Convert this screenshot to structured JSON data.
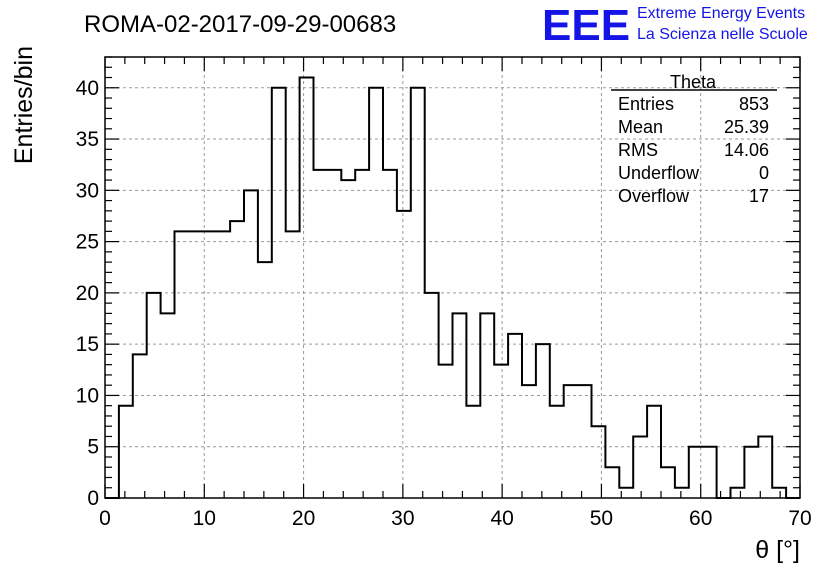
{
  "chart_data": {
    "type": "bar",
    "title": "ROMA-02-2017-09-29-00683",
    "xlabel": "θ [°]",
    "ylabel": "Entries/bin",
    "xlim": [
      0,
      70
    ],
    "ylim": [
      0,
      43
    ],
    "grid": true,
    "x_ticks": [
      0,
      10,
      20,
      30,
      40,
      50,
      60,
      70
    ],
    "y_ticks": [
      0,
      5,
      10,
      15,
      20,
      25,
      30,
      35,
      40
    ],
    "bin_edges": [
      0,
      1.4,
      2.8,
      4.2,
      5.6,
      7,
      8.4,
      9.8,
      11.2,
      12.6,
      14,
      15.4,
      16.8,
      18.2,
      19.6,
      21,
      22.4,
      23.8,
      25.2,
      26.6,
      28,
      29.4,
      30.8,
      32.2,
      33.6,
      35,
      36.4,
      37.8,
      39.2,
      40.6,
      42,
      43.4,
      44.8,
      46.2,
      47.6,
      49,
      50.4,
      51.8,
      53.2,
      54.6,
      56,
      57.4,
      58.8,
      60.2,
      61.6,
      63,
      64.4,
      65.8,
      67.2,
      68.6,
      70
    ],
    "values": [
      0,
      9,
      14,
      20,
      18,
      26,
      26,
      26,
      26,
      27,
      30,
      23,
      40,
      26,
      41,
      32,
      32,
      31,
      32,
      40,
      32,
      28,
      40,
      20,
      13,
      18,
      9,
      18,
      13,
      16,
      11,
      15,
      9,
      11,
      11,
      7,
      3,
      1,
      6,
      9,
      3,
      1,
      5,
      5,
      0,
      1,
      5,
      6,
      1,
      0
    ],
    "stats_box": {
      "title": "Theta",
      "rows": [
        {
          "label": "Entries",
          "value": "853"
        },
        {
          "label": "Mean",
          "value": "25.39"
        },
        {
          "label": "RMS",
          "value": "14.06"
        },
        {
          "label": "Underflow",
          "value": "0"
        },
        {
          "label": "Overflow",
          "value": "17"
        }
      ]
    }
  },
  "logo": {
    "mark": "EEE",
    "line1": "Extreme Energy Events",
    "line2": "La Scienza nelle Scuole",
    "color": "#1414e6"
  }
}
